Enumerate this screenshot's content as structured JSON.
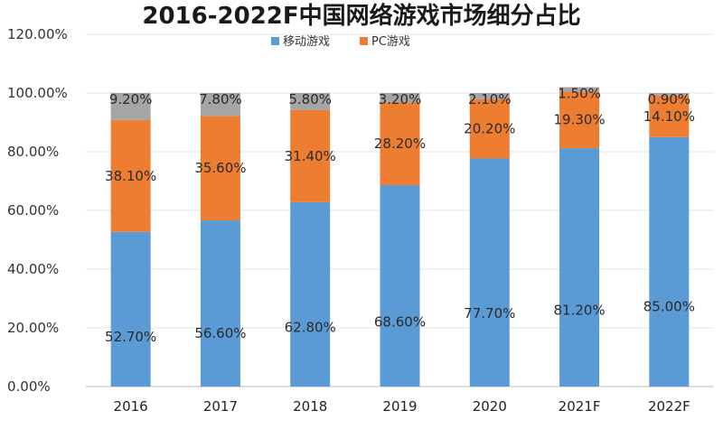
{
  "chart_data": {
    "type": "bar",
    "stacked": true,
    "title": "2016-2022F中国网络游戏市场细分占比",
    "categories": [
      "2016",
      "2017",
      "2018",
      "2019",
      "2020",
      "2021F",
      "2022F"
    ],
    "series": [
      {
        "name": "移动游戏",
        "color": "#5b9bd5",
        "values": [
          52.7,
          56.6,
          62.8,
          68.6,
          77.7,
          81.2,
          85.0
        ],
        "labels": [
          "52.70%",
          "56.60%",
          "62.80%",
          "68.60%",
          "77.70%",
          "81.20%",
          "85.00%"
        ]
      },
      {
        "name": "PC游戏",
        "color": "#ed7d31",
        "values": [
          38.1,
          35.6,
          31.4,
          28.2,
          20.2,
          19.3,
          14.1
        ],
        "labels": [
          "38.10%",
          "35.60%",
          "31.40%",
          "28.20%",
          "20.20%",
          "19.30%",
          "14.10%"
        ]
      },
      {
        "name": "",
        "color": "#a5a5a5",
        "values": [
          9.2,
          7.8,
          5.8,
          3.2,
          2.1,
          1.5,
          0.9
        ],
        "labels": [
          "9.20%",
          "7.80%",
          "5.80%",
          "3.20%",
          "2.10%",
          "1.50%",
          "0.90%"
        ]
      }
    ],
    "ylim": [
      0,
      120
    ],
    "yticks": [
      "0.00%",
      "20.00%",
      "40.00%",
      "60.00%",
      "80.00%",
      "100.00%",
      "120.00%"
    ],
    "grid": true,
    "legend": "top-center"
  }
}
